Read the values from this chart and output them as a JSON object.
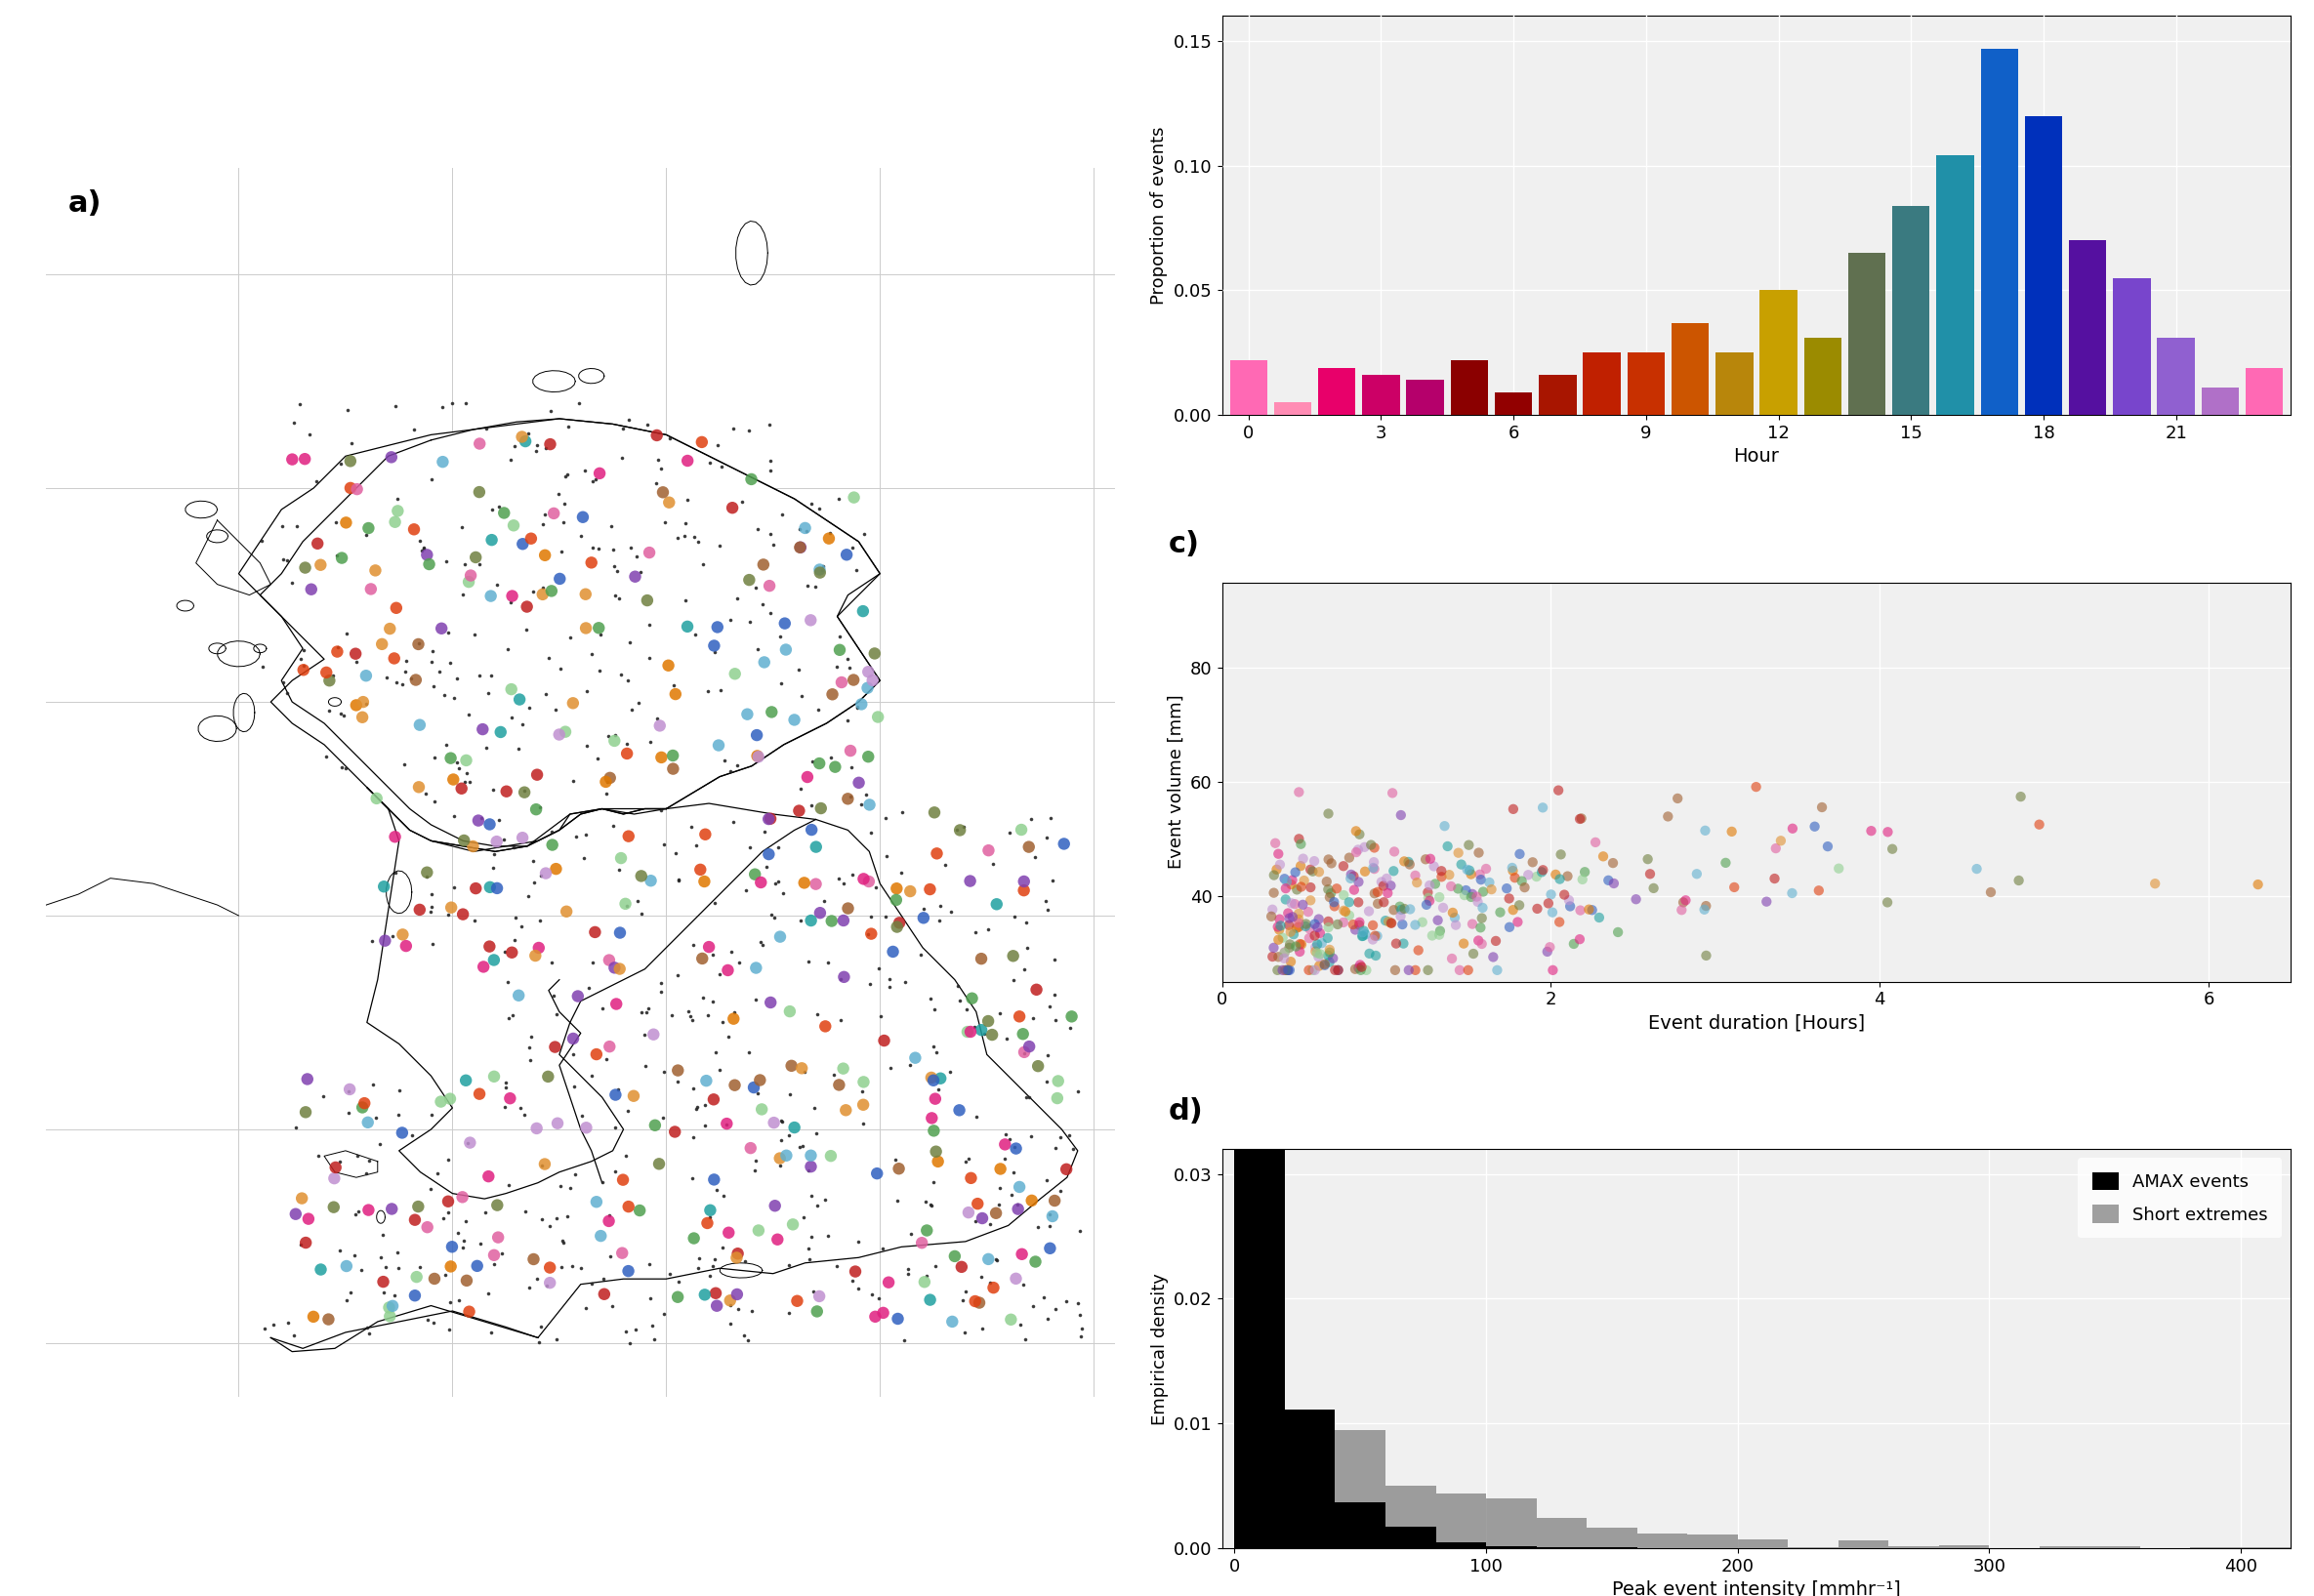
{
  "bar_b_values": [
    0.022,
    0.005,
    0.019,
    0.016,
    0.014,
    0.022,
    0.009,
    0.016,
    0.025,
    0.025,
    0.037,
    0.025,
    0.05,
    0.031,
    0.065,
    0.084,
    0.104,
    0.147,
    0.12,
    0.07,
    0.055,
    0.031,
    0.011,
    0.019
  ],
  "bar_b_colors": [
    "#FF69B4",
    "#FF8CB4",
    "#E8006A",
    "#CC0066",
    "#B5006B",
    "#8B0000",
    "#920000",
    "#A81500",
    "#C02000",
    "#C83000",
    "#CC5500",
    "#B8860B",
    "#C8A000",
    "#9B8B00",
    "#607050",
    "#3A7A80",
    "#2090A8",
    "#1060C8",
    "#0030BB",
    "#5510A0",
    "#7845CC",
    "#9060D0",
    "#B070C8",
    "#FF69B4"
  ],
  "bar_b_ylabel": "Proportion of events",
  "bar_b_xlabel": "Hour",
  "scatter_c_xlabel": "Event duration [Hours]",
  "scatter_c_ylabel": "Event volume [mm]",
  "hist_d_xlabel": "Peak event intensity [mmhr⁻¹]",
  "hist_d_ylabel": "Empirical density",
  "background_color": "#f0f0f0",
  "map_dot_color": "#222222",
  "station_colors": [
    "#3060C0",
    "#E07800",
    "#708040",
    "#E060A0",
    "#C02020",
    "#20A0A0",
    "#8040B0",
    "#A06030",
    "#60B0D0",
    "#E02080",
    "#50A050",
    "#E04010",
    "#C090D0",
    "#90D090",
    "#E09030"
  ]
}
